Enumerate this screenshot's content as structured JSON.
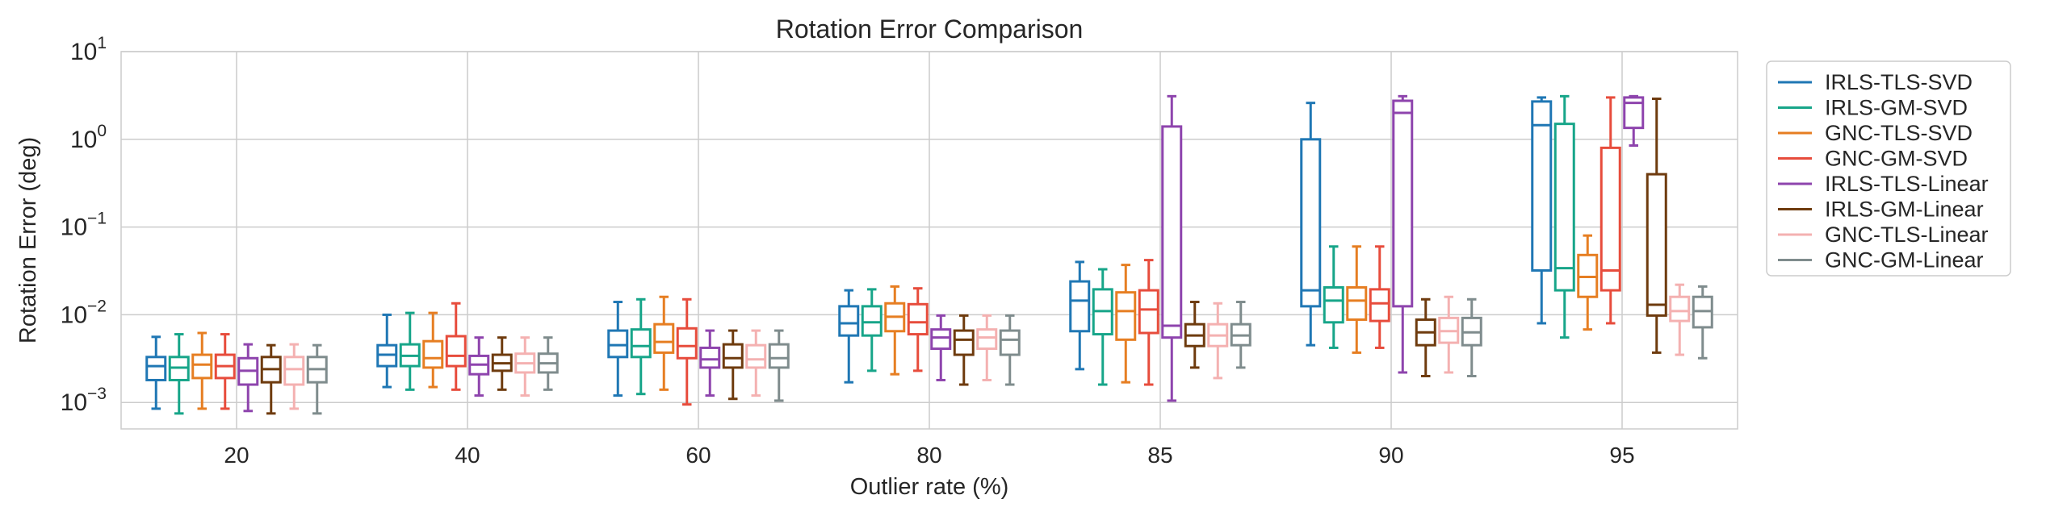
{
  "chart_data": {
    "type": "boxplot",
    "title": "Rotation Error Comparison",
    "xlabel": "Outlier rate (%)",
    "ylabel": "Rotation Error (deg)",
    "yscale": "log",
    "ylim": [
      0.0005,
      10
    ],
    "y_ticks": [
      {
        "value": 0.001,
        "base": "10",
        "exp": "−3"
      },
      {
        "value": 0.01,
        "base": "10",
        "exp": "−2"
      },
      {
        "value": 0.1,
        "base": "10",
        "exp": "−1"
      },
      {
        "value": 1,
        "base": "10",
        "exp": "0"
      },
      {
        "value": 10,
        "base": "10",
        "exp": "1"
      }
    ],
    "grid": true,
    "legend_position": "outside-right",
    "categories": [
      "20",
      "40",
      "60",
      "80",
      "85",
      "90",
      "95"
    ],
    "series": [
      {
        "name": "IRLS-TLS-SVD",
        "color": "#1f77b4",
        "boxes": [
          {
            "whislo": 0.00085,
            "q1": 0.0018,
            "med": 0.0026,
            "q3": 0.0033,
            "whishi": 0.0056
          },
          {
            "whislo": 0.0015,
            "q1": 0.0026,
            "med": 0.0035,
            "q3": 0.0045,
            "whishi": 0.01
          },
          {
            "whislo": 0.0012,
            "q1": 0.0033,
            "med": 0.0045,
            "q3": 0.0066,
            "whishi": 0.014
          },
          {
            "whislo": 0.0017,
            "q1": 0.0058,
            "med": 0.008,
            "q3": 0.0125,
            "whishi": 0.019
          },
          {
            "whislo": 0.0024,
            "q1": 0.0065,
            "med": 0.0145,
            "q3": 0.024,
            "whishi": 0.04
          },
          {
            "whislo": 0.0045,
            "q1": 0.0125,
            "med": 0.019,
            "q3": 1.0,
            "whishi": 2.6
          },
          {
            "whislo": 0.008,
            "q1": 0.032,
            "med": 1.45,
            "q3": 2.7,
            "whishi": 3.0
          }
        ]
      },
      {
        "name": "IRLS-GM-SVD",
        "color": "#17a589",
        "boxes": [
          {
            "whislo": 0.00075,
            "q1": 0.0018,
            "med": 0.0025,
            "q3": 0.0033,
            "whishi": 0.006
          },
          {
            "whislo": 0.0014,
            "q1": 0.0026,
            "med": 0.0034,
            "q3": 0.0046,
            "whishi": 0.0105
          },
          {
            "whislo": 0.00125,
            "q1": 0.0033,
            "med": 0.0044,
            "q3": 0.0068,
            "whishi": 0.015
          },
          {
            "whislo": 0.0023,
            "q1": 0.0058,
            "med": 0.0082,
            "q3": 0.0125,
            "whishi": 0.0195
          },
          {
            "whislo": 0.0016,
            "q1": 0.006,
            "med": 0.011,
            "q3": 0.0195,
            "whishi": 0.033
          },
          {
            "whislo": 0.0042,
            "q1": 0.0082,
            "med": 0.0145,
            "q3": 0.0205,
            "whishi": 0.06
          },
          {
            "whislo": 0.0055,
            "q1": 0.019,
            "med": 0.034,
            "q3": 1.5,
            "whishi": 3.1
          }
        ]
      },
      {
        "name": "GNC-TLS-SVD",
        "color": "#e67e22",
        "boxes": [
          {
            "whislo": 0.00085,
            "q1": 0.0019,
            "med": 0.0027,
            "q3": 0.0035,
            "whishi": 0.0062
          },
          {
            "whislo": 0.0015,
            "q1": 0.0025,
            "med": 0.0032,
            "q3": 0.005,
            "whishi": 0.0105
          },
          {
            "whislo": 0.0014,
            "q1": 0.0037,
            "med": 0.0049,
            "q3": 0.0078,
            "whishi": 0.016
          },
          {
            "whislo": 0.0021,
            "q1": 0.0065,
            "med": 0.0095,
            "q3": 0.0135,
            "whishi": 0.021
          },
          {
            "whislo": 0.0017,
            "q1": 0.0052,
            "med": 0.011,
            "q3": 0.018,
            "whishi": 0.037
          },
          {
            "whislo": 0.0037,
            "q1": 0.0088,
            "med": 0.0145,
            "q3": 0.0205,
            "whishi": 0.06
          },
          {
            "whislo": 0.0068,
            "q1": 0.016,
            "med": 0.027,
            "q3": 0.048,
            "whishi": 0.08
          }
        ]
      },
      {
        "name": "GNC-GM-SVD",
        "color": "#e74c3c",
        "boxes": [
          {
            "whislo": 0.00085,
            "q1": 0.0019,
            "med": 0.0026,
            "q3": 0.0035,
            "whishi": 0.006
          },
          {
            "whislo": 0.0014,
            "q1": 0.0026,
            "med": 0.0034,
            "q3": 0.0057,
            "whishi": 0.0135
          },
          {
            "whislo": 0.00095,
            "q1": 0.0032,
            "med": 0.0044,
            "q3": 0.007,
            "whishi": 0.015
          },
          {
            "whislo": 0.0023,
            "q1": 0.006,
            "med": 0.0082,
            "q3": 0.0132,
            "whishi": 0.02
          },
          {
            "whislo": 0.0016,
            "q1": 0.0062,
            "med": 0.0115,
            "q3": 0.019,
            "whishi": 0.042
          },
          {
            "whislo": 0.0042,
            "q1": 0.0085,
            "med": 0.0135,
            "q3": 0.0195,
            "whishi": 0.06
          },
          {
            "whislo": 0.008,
            "q1": 0.019,
            "med": 0.032,
            "q3": 0.8,
            "whishi": 3.0
          }
        ]
      },
      {
        "name": "IRLS-TLS-Linear",
        "color": "#8e44ad",
        "boxes": [
          {
            "whislo": 0.0008,
            "q1": 0.0016,
            "med": 0.0023,
            "q3": 0.0032,
            "whishi": 0.0046
          },
          {
            "whislo": 0.0012,
            "q1": 0.0021,
            "med": 0.0027,
            "q3": 0.0034,
            "whishi": 0.0055
          },
          {
            "whislo": 0.0012,
            "q1": 0.0025,
            "med": 0.0031,
            "q3": 0.0042,
            "whishi": 0.0066
          },
          {
            "whislo": 0.0018,
            "q1": 0.0041,
            "med": 0.0055,
            "q3": 0.0068,
            "whishi": 0.0098
          },
          {
            "whislo": 0.00105,
            "q1": 0.0055,
            "med": 0.0075,
            "q3": 1.4,
            "whishi": 3.1
          },
          {
            "whislo": 0.0022,
            "q1": 0.0125,
            "med": 2.0,
            "q3": 2.75,
            "whishi": 3.1
          },
          {
            "whislo": 0.85,
            "q1": 1.35,
            "med": 2.6,
            "q3": 3.0,
            "whishi": 3.1
          }
        ]
      },
      {
        "name": "IRLS-GM-Linear",
        "color": "#6e3b0e",
        "boxes": [
          {
            "whislo": 0.00075,
            "q1": 0.0017,
            "med": 0.0024,
            "q3": 0.0033,
            "whishi": 0.0045
          },
          {
            "whislo": 0.0014,
            "q1": 0.0023,
            "med": 0.0028,
            "q3": 0.0035,
            "whishi": 0.0055
          },
          {
            "whislo": 0.0011,
            "q1": 0.0025,
            "med": 0.0032,
            "q3": 0.0046,
            "whishi": 0.0066
          },
          {
            "whislo": 0.0016,
            "q1": 0.0035,
            "med": 0.0052,
            "q3": 0.0066,
            "whishi": 0.0098
          },
          {
            "whislo": 0.0025,
            "q1": 0.0044,
            "med": 0.0058,
            "q3": 0.0078,
            "whishi": 0.014
          },
          {
            "whislo": 0.002,
            "q1": 0.0045,
            "med": 0.0063,
            "q3": 0.0088,
            "whishi": 0.015
          },
          {
            "whislo": 0.0037,
            "q1": 0.0098,
            "med": 0.013,
            "q3": 0.4,
            "whishi": 2.9
          }
        ]
      },
      {
        "name": "GNC-TLS-Linear",
        "color": "#f4b1b1",
        "boxes": [
          {
            "whislo": 0.00085,
            "q1": 0.0016,
            "med": 0.0024,
            "q3": 0.0033,
            "whishi": 0.0046
          },
          {
            "whislo": 0.0012,
            "q1": 0.0022,
            "med": 0.0028,
            "q3": 0.0036,
            "whishi": 0.0055
          },
          {
            "whislo": 0.0012,
            "q1": 0.0025,
            "med": 0.0031,
            "q3": 0.0045,
            "whishi": 0.0066
          },
          {
            "whislo": 0.0018,
            "q1": 0.0041,
            "med": 0.0055,
            "q3": 0.0068,
            "whishi": 0.0098
          },
          {
            "whislo": 0.0019,
            "q1": 0.0044,
            "med": 0.0058,
            "q3": 0.0078,
            "whishi": 0.0135
          },
          {
            "whislo": 0.0022,
            "q1": 0.0048,
            "med": 0.0065,
            "q3": 0.0092,
            "whishi": 0.016
          },
          {
            "whislo": 0.0035,
            "q1": 0.0085,
            "med": 0.011,
            "q3": 0.016,
            "whishi": 0.022
          }
        ]
      },
      {
        "name": "GNC-GM-Linear",
        "color": "#7f8c8d",
        "boxes": [
          {
            "whislo": 0.00075,
            "q1": 0.0017,
            "med": 0.0024,
            "q3": 0.0033,
            "whishi": 0.0045
          },
          {
            "whislo": 0.0014,
            "q1": 0.0022,
            "med": 0.0028,
            "q3": 0.0036,
            "whishi": 0.0055
          },
          {
            "whislo": 0.00105,
            "q1": 0.0025,
            "med": 0.0032,
            "q3": 0.0046,
            "whishi": 0.0066
          },
          {
            "whislo": 0.0016,
            "q1": 0.0035,
            "med": 0.0052,
            "q3": 0.0066,
            "whishi": 0.0098
          },
          {
            "whislo": 0.0025,
            "q1": 0.0045,
            "med": 0.0058,
            "q3": 0.0078,
            "whishi": 0.014
          },
          {
            "whislo": 0.002,
            "q1": 0.0045,
            "med": 0.0063,
            "q3": 0.0092,
            "whishi": 0.015
          },
          {
            "whislo": 0.0032,
            "q1": 0.0072,
            "med": 0.011,
            "q3": 0.016,
            "whishi": 0.021
          }
        ]
      }
    ]
  }
}
